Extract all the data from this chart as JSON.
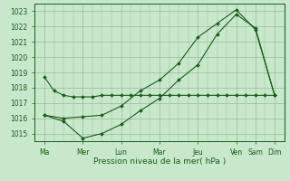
{
  "xlabel": "Pression niveau de la mer( hPa )",
  "background_color": "#c8e8cc",
  "grid_color": "#99bb99",
  "line_color": "#1a5c1a",
  "ylim": [
    1014.5,
    1023.5
  ],
  "yticks": [
    1015,
    1016,
    1017,
    1018,
    1019,
    1020,
    1021,
    1022,
    1023
  ],
  "xtick_labels": [
    "Ma",
    "Mer",
    "",
    "Lun",
    "",
    "Mar",
    "",
    "Jeu",
    "",
    "Ven",
    "Sam",
    "",
    "Dim"
  ],
  "line1_x": [
    0,
    0.5,
    1,
    1.5,
    2,
    2.5,
    3,
    3.5,
    4,
    4.5,
    5,
    5.5,
    6,
    6.5,
    7,
    7.5,
    8,
    8.5,
    9,
    9.5,
    10,
    10.5,
    11,
    11.5,
    12
  ],
  "line1_y": [
    1018.7,
    1017.8,
    1017.5,
    1017.4,
    1017.4,
    1017.4,
    1017.5,
    1017.5,
    1017.5,
    1017.5,
    1017.5,
    1017.5,
    1017.5,
    1017.5,
    1017.5,
    1017.5,
    1017.5,
    1017.5,
    1017.5,
    1017.5,
    1017.5,
    1017.5,
    1017.5,
    1017.5,
    1017.5
  ],
  "line2_x": [
    0,
    1,
    2,
    3,
    4,
    5,
    6,
    7,
    8,
    9,
    10,
    11,
    12
  ],
  "line2_y": [
    1016.2,
    1015.8,
    1014.7,
    1015.0,
    1015.6,
    1016.5,
    1017.3,
    1018.5,
    1019.5,
    1021.5,
    1022.8,
    1021.9,
    1017.5
  ],
  "line3_x": [
    0,
    1,
    2,
    3,
    4,
    5,
    6,
    7,
    8,
    9,
    10,
    11,
    12
  ],
  "line3_y": [
    1016.2,
    1016.0,
    1016.1,
    1016.2,
    1016.8,
    1017.8,
    1018.5,
    1019.6,
    1021.3,
    1022.2,
    1023.1,
    1021.8,
    1017.5
  ],
  "xlim": [
    -0.5,
    12.5
  ],
  "major_xtick_pos": [
    0,
    2,
    4,
    6,
    8,
    10,
    11,
    12
  ],
  "major_xtick_labels": [
    "Ma",
    "Mer",
    "Lun",
    "Mar",
    "Jeu",
    "Ven",
    "Sam",
    "Dim"
  ]
}
